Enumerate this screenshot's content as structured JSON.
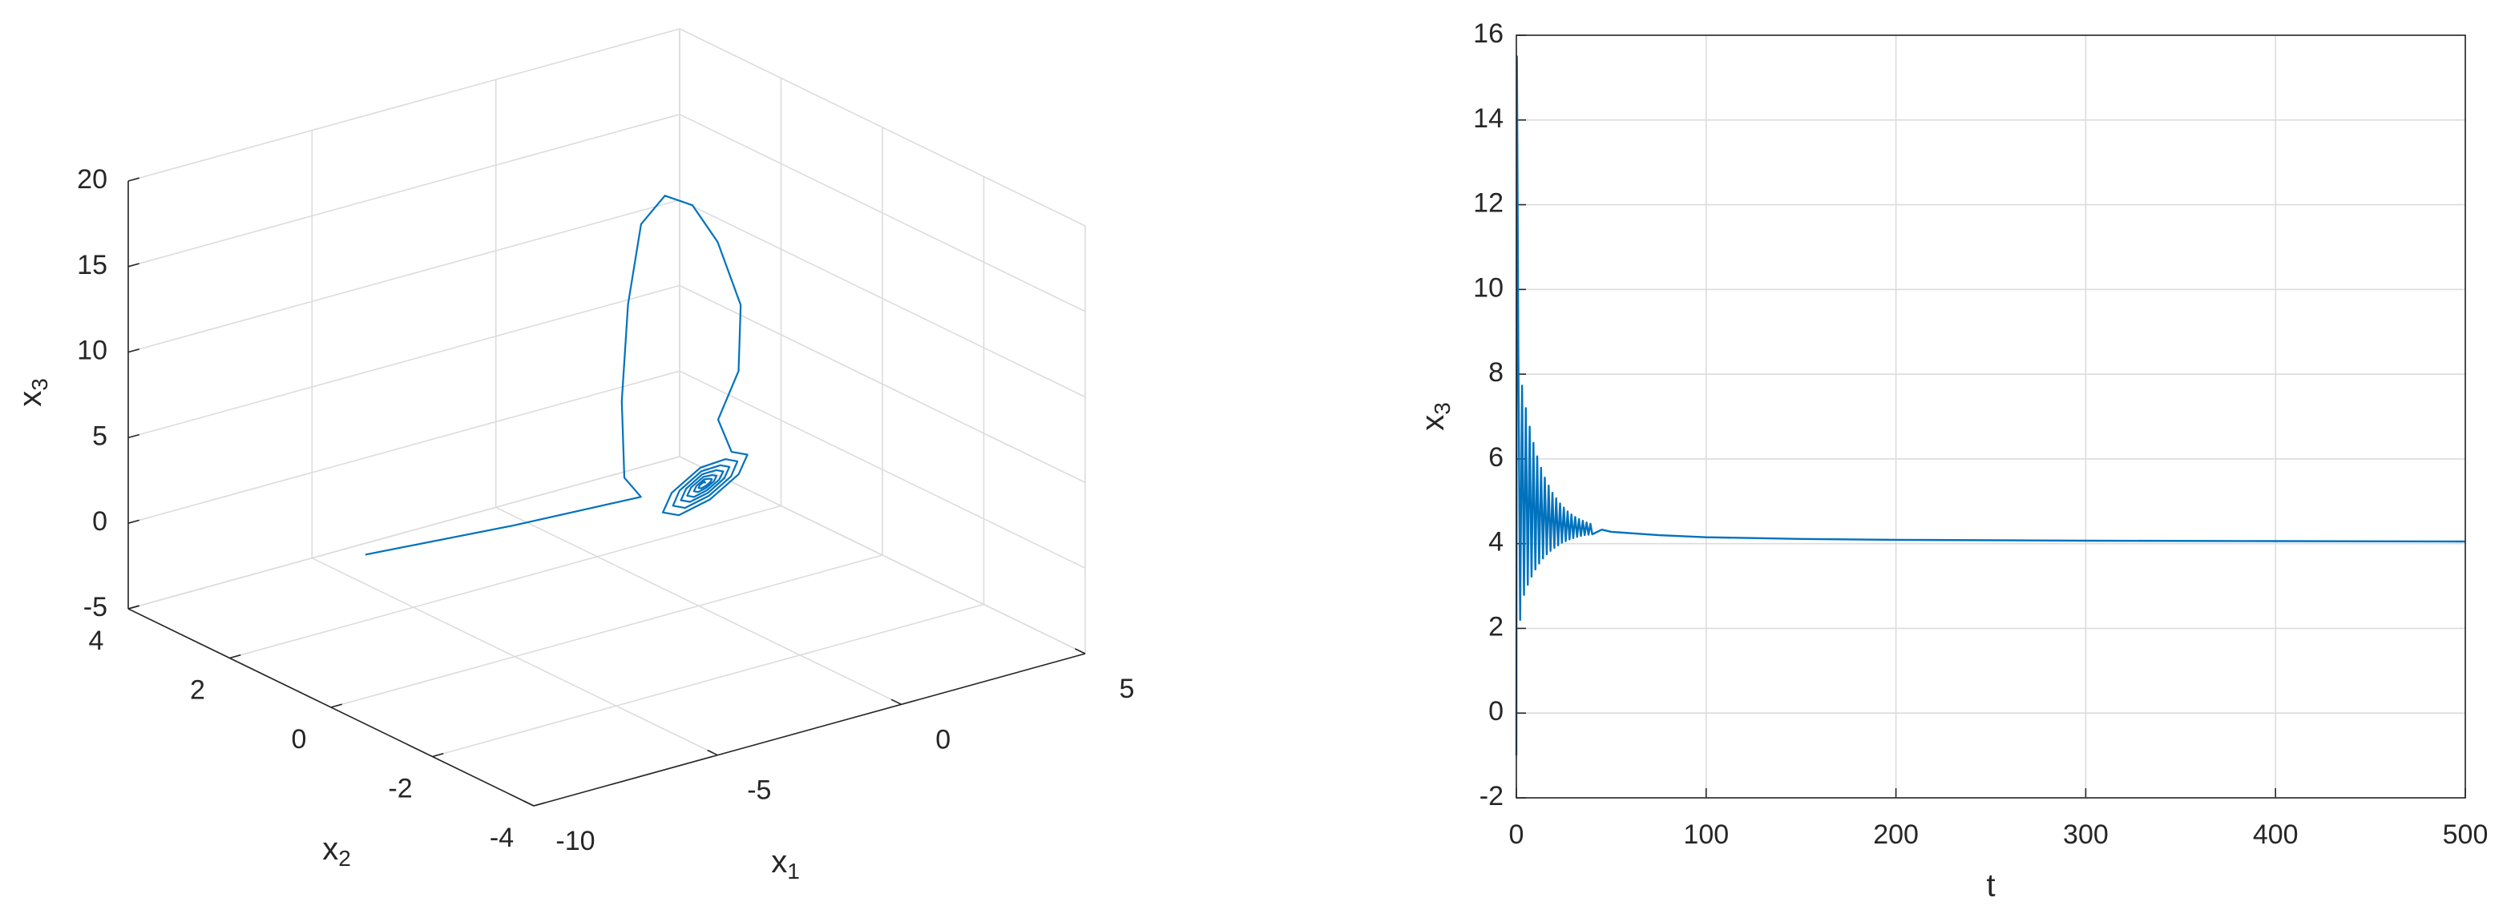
{
  "chart_data": [
    {
      "type": "line3d",
      "xlabel": {
        "base": "x",
        "sub": "1"
      },
      "ylabel": {
        "base": "x",
        "sub": "2"
      },
      "zlabel": {
        "base": "x",
        "sub": "3"
      },
      "x": [
        -4.93,
        -2.99,
        -1.57,
        -3.4,
        -2.09,
        -0.54,
        0.78,
        1.84,
        2.59,
        3.0,
        2.8,
        1.5,
        -0.16,
        -1.2,
        -0.56,
        -0.29,
        -0.56,
        -1.2,
        -1.84,
        -2.11,
        -1.84,
        -1.2,
        -0.71,
        -0.5,
        -0.71,
        -1.2,
        -1.69,
        -1.9,
        -1.69,
        -1.2,
        -0.83,
        -0.68,
        -0.83,
        -1.2,
        -1.57,
        -1.72,
        -1.57,
        -1.2,
        -0.93,
        -0.82,
        -0.93,
        -1.2,
        -1.47,
        -1.58,
        -1.47,
        -1.2,
        -1.03,
        -0.96,
        -1.03,
        -1.2,
        -1.37,
        -1.44,
        -1.37,
        -1.2,
        -1.1,
        -1.06,
        -1.1,
        -1.2,
        -1.3,
        -1.34,
        -1.3,
        -1.2
      ],
      "y": [
        3,
        1.5,
        0,
        -1,
        0,
        1,
        1.7,
        2,
        2,
        1.8,
        1.2,
        0.3,
        -0.5,
        -1.52,
        -1.37,
        -1,
        -0.63,
        -0.48,
        -0.63,
        -1,
        -1.37,
        -1.4,
        -1.28,
        -1,
        -0.72,
        -0.6,
        -0.72,
        -1,
        -1.28,
        -1.3,
        -1.21,
        -1,
        -0.79,
        -0.7,
        -0.79,
        -1,
        -1.21,
        -1.22,
        -1.16,
        -1,
        -0.84,
        -0.78,
        -0.84,
        -1,
        -1.16,
        -1.14,
        -1.1,
        -1,
        -0.9,
        -0.86,
        -0.9,
        -1,
        -1.1,
        -1.08,
        -1.06,
        -1,
        -0.94,
        -0.92,
        -0.94,
        -1,
        -1.06,
        -1
      ],
      "z": [
        -3.4,
        -0.7,
        2.3,
        5.95,
        8.2,
        11.5,
        14.4,
        15.0,
        14.0,
        11.9,
        9.2,
        7.4,
        6.7,
        6.9,
        6.14,
        4.3,
        2.46,
        1.7,
        2.46,
        4.3,
        6.14,
        6.3,
        5.71,
        4.3,
        2.89,
        2.3,
        2.89,
        4.3,
        5.71,
        5.8,
        5.36,
        4.3,
        3.24,
        2.8,
        3.24,
        4.3,
        5.36,
        5.4,
        5.08,
        4.3,
        3.52,
        3.2,
        3.52,
        4.3,
        5.08,
        5.0,
        4.79,
        4.3,
        3.81,
        3.6,
        3.81,
        4.3,
        4.79,
        4.7,
        4.58,
        4.3,
        4.02,
        3.9,
        4.02,
        4.3,
        4.58,
        4.3
      ],
      "xlim": [
        -10,
        5
      ],
      "ylim": [
        -4,
        4
      ],
      "zlim": [
        -5,
        20
      ],
      "xticks": [
        -10,
        -5,
        0,
        5
      ],
      "yticks": [
        -4,
        -2,
        0,
        2,
        4
      ],
      "zticks": [
        -5,
        0,
        5,
        10,
        15,
        20
      ],
      "color": "#0072bd",
      "grid": true
    },
    {
      "type": "line",
      "xlabel": "t",
      "ylabel": {
        "base": "x",
        "sub": "3"
      },
      "x": [
        0,
        0.3,
        1,
        2,
        3,
        4,
        5,
        6,
        7,
        8,
        9,
        10,
        11,
        12,
        13,
        14,
        15,
        16,
        17,
        18,
        19,
        20,
        21,
        22,
        23,
        24,
        25,
        26,
        27,
        28,
        29,
        30,
        31,
        32,
        33,
        34,
        35,
        36,
        37,
        38,
        39,
        40,
        45,
        50,
        75,
        100,
        150,
        200,
        300,
        400,
        500
      ],
      "values": [
        -1,
        15.5,
        8.7,
        2.2,
        7.73,
        2.79,
        7.2,
        3.03,
        6.76,
        3.22,
        6.38,
        3.39,
        6.06,
        3.53,
        5.79,
        3.65,
        5.56,
        3.75,
        5.37,
        3.83,
        5.2,
        3.9,
        5.07,
        3.96,
        4.95,
        4.02,
        4.85,
        4.06,
        4.76,
        4.1,
        4.69,
        4.13,
        4.63,
        4.16,
        4.58,
        4.18,
        4.54,
        4.2,
        4.5,
        4.21,
        4.47,
        4.22,
        4.33,
        4.28,
        4.2,
        4.15,
        4.11,
        4.09,
        4.07,
        4.06,
        4.05
      ],
      "color": "#0072bd",
      "xlim": [
        0,
        500
      ],
      "ylim": [
        -2,
        16
      ],
      "xticks": [
        0,
        100,
        200,
        300,
        400,
        500
      ],
      "yticks": [
        -2,
        0,
        2,
        4,
        6,
        8,
        10,
        12,
        14,
        16
      ],
      "grid": true
    }
  ]
}
